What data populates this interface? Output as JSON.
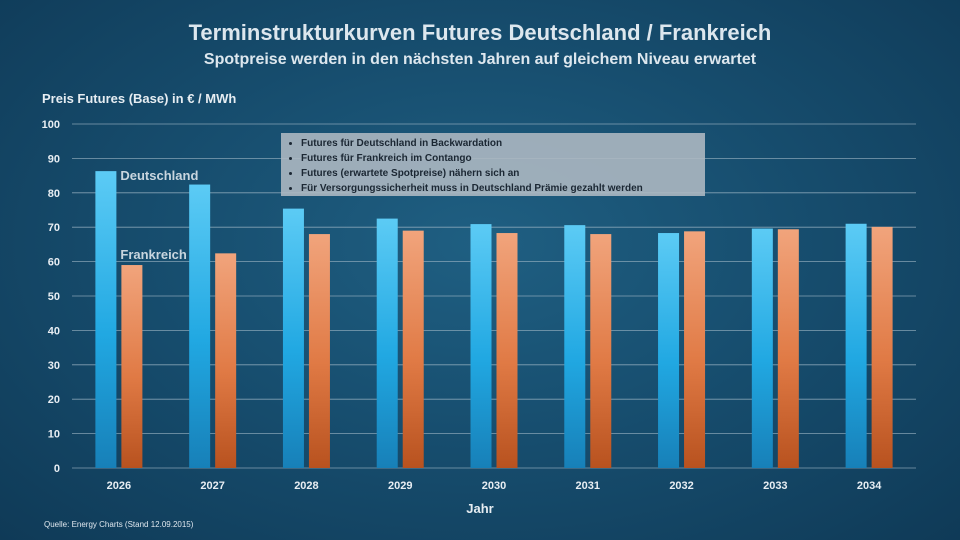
{
  "chart_data": {
    "type": "bar",
    "title": "Terminstrukturkurven Futures Deutschland / Frankreich",
    "subtitle": "Spotpreise werden in den nächsten Jahren auf gleichem Niveau erwartet",
    "ylabel": "Preis Futures (Base) in € / MWh",
    "xlabel": "Jahr",
    "ylim": [
      0,
      100
    ],
    "yticks": [
      0,
      10,
      20,
      30,
      40,
      50,
      60,
      70,
      80,
      90,
      100
    ],
    "grid": true,
    "categories": [
      "2026",
      "2027",
      "2028",
      "2029",
      "2030",
      "2031",
      "2032",
      "2033",
      "2034"
    ],
    "series": [
      {
        "name": "Deutschland",
        "color": "#2fb3ea",
        "values": [
          86.3,
          82.4,
          75.4,
          72.5,
          70.9,
          70.6,
          68.3,
          69.6,
          71.0
        ]
      },
      {
        "name": "Frankreich",
        "color": "#e8895a",
        "values": [
          59.0,
          62.4,
          68.0,
          69.0,
          68.3,
          68.0,
          68.8,
          69.4,
          70.1
        ]
      }
    ],
    "annotations": [
      "Futures für Deutschland in Backwardation",
      "Futures für Frankreich im Contango",
      "Futures (erwartete Spotpreise) nähern sich an",
      "Für Versorgungssicherheit muss in Deutschland Prämie gezahlt werden"
    ],
    "source": "Quelle: Energy Charts (Stand 12.09.2015)"
  }
}
